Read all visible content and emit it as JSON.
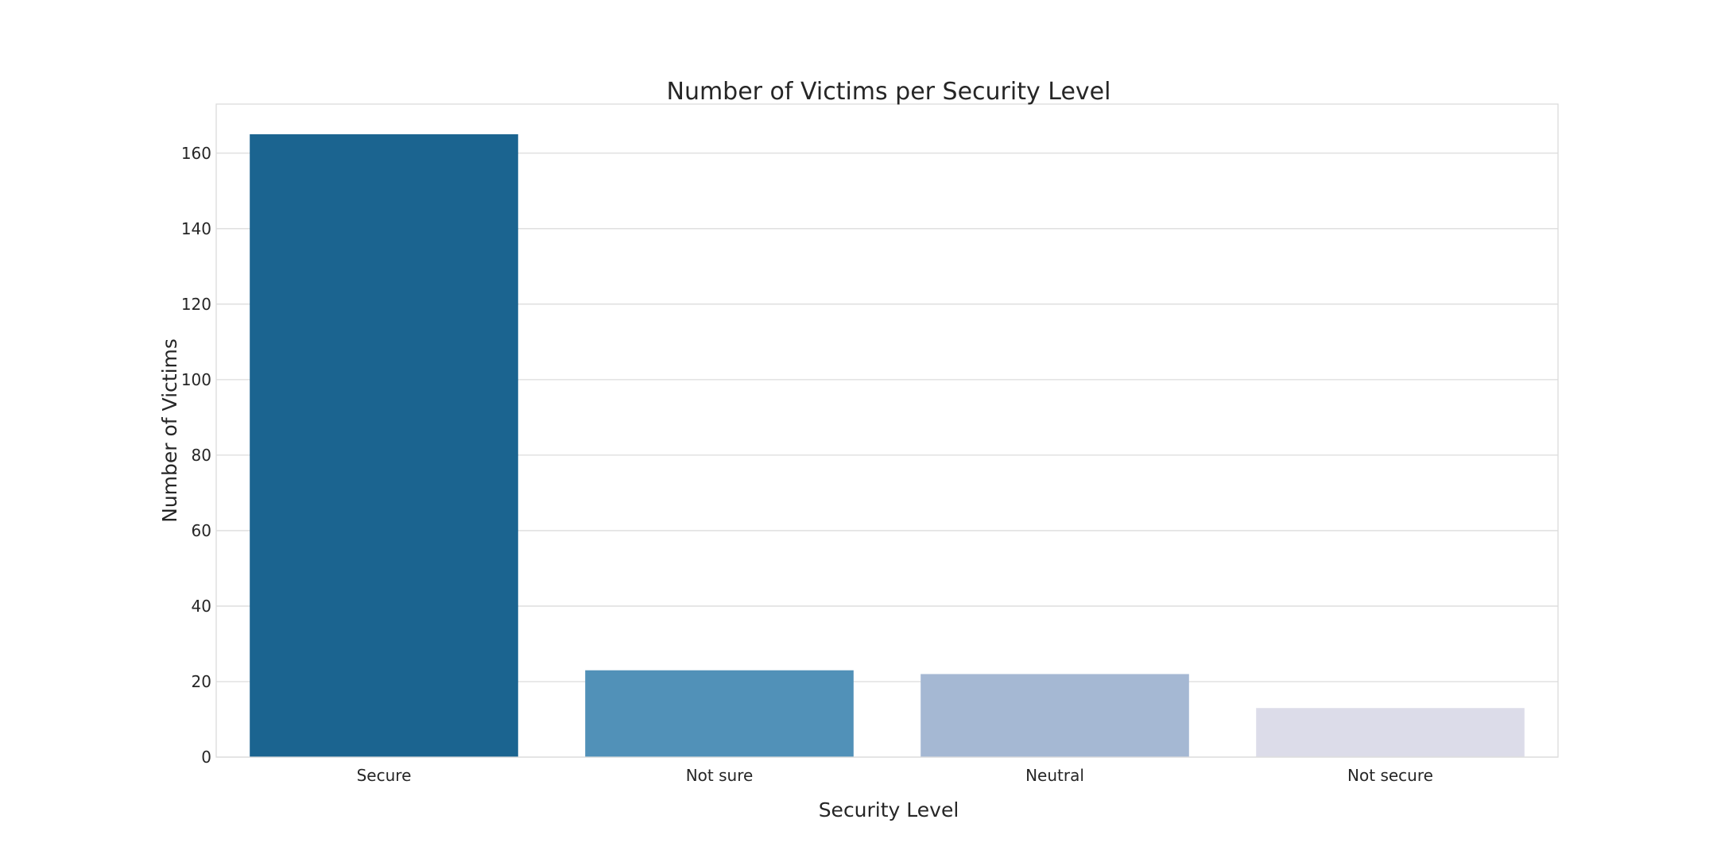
{
  "chart_data": {
    "type": "bar",
    "title": "Number of Victims per Security Level",
    "xlabel": "Security Level",
    "ylabel": "Number of Victims",
    "categories": [
      "Secure",
      "Not sure",
      "Neutral",
      "Not secure"
    ],
    "values": [
      165,
      23,
      22,
      13
    ],
    "colors": [
      "#1b6490",
      "#5191b8",
      "#a5b8d3",
      "#dcdce9"
    ],
    "ylim": [
      0,
      173
    ],
    "yticks": [
      0,
      20,
      40,
      60,
      80,
      100,
      120,
      140,
      160
    ],
    "grid": true,
    "legend": "none"
  }
}
